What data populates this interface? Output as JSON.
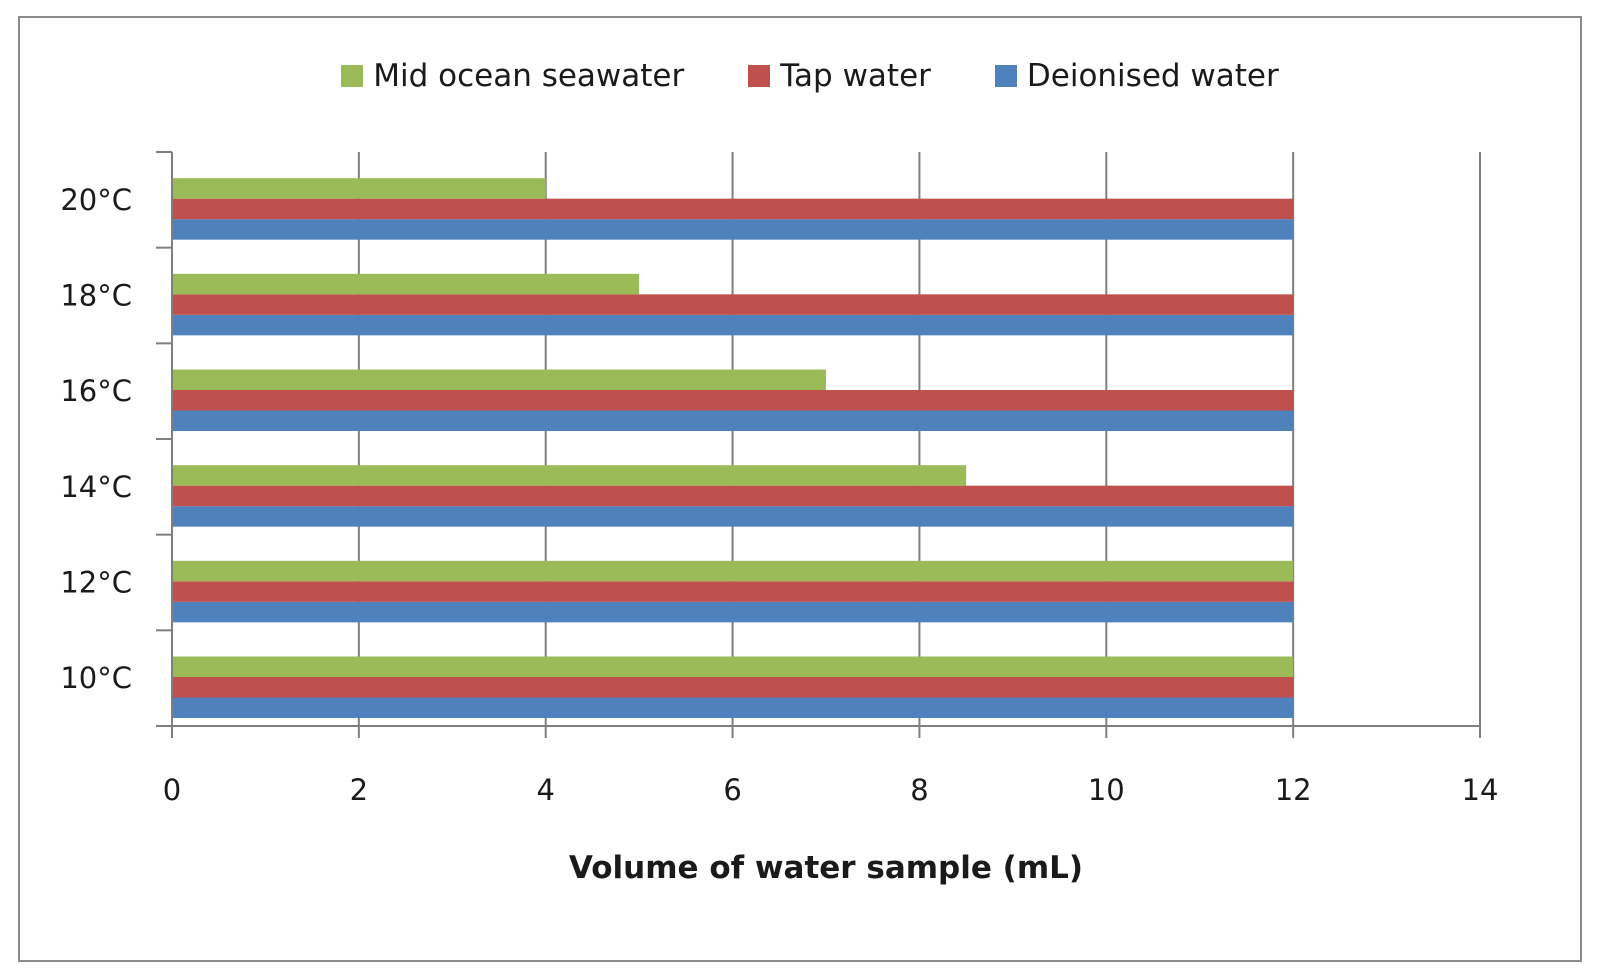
{
  "chart_data": {
    "type": "bar",
    "orientation": "horizontal",
    "categories": [
      "10°C",
      "12°C",
      "14°C",
      "16°C",
      "18°C",
      "20°C"
    ],
    "series": [
      {
        "name": "Deionised water",
        "color": "#4f81bd",
        "values": [
          12,
          12,
          12,
          12,
          12,
          12
        ]
      },
      {
        "name": "Tap water",
        "color": "#c0504d",
        "values": [
          12,
          12,
          12,
          12,
          12,
          12
        ]
      },
      {
        "name": "Mid ocean seawater",
        "color": "#9bbb59",
        "values": [
          12,
          12,
          8.5,
          7,
          5,
          4
        ]
      }
    ],
    "legend_order": [
      "Mid ocean seawater",
      "Tap water",
      "Deionised water"
    ],
    "legend_position": "top",
    "xlabel": "Volume of water sample (mL)",
    "ylabel": "",
    "xlim": [
      0,
      14
    ],
    "xticks": [
      "0",
      "2",
      "4",
      "6",
      "8",
      "10",
      "12",
      "14"
    ],
    "grid": "vertical"
  }
}
